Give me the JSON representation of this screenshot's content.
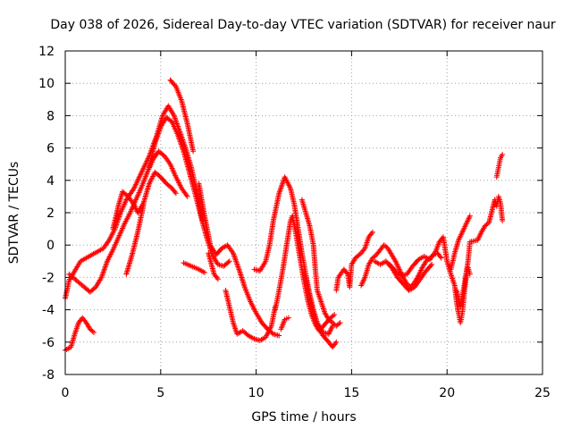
{
  "chart_data": {
    "type": "scatter",
    "title": "Day 038 of 2026, Sidereal Day-to-day VTEC variation (SDTVAR) for receiver naur",
    "xlabel": "GPS time / hours",
    "ylabel": "SDTVAR / TECUs",
    "xlim": [
      0,
      25
    ],
    "ylim": [
      -8,
      12
    ],
    "xticks": [
      0,
      5,
      10,
      15,
      20,
      25
    ],
    "yticks": [
      -8,
      -6,
      -4,
      -2,
      0,
      2,
      4,
      6,
      8,
      10,
      12
    ],
    "grid": true,
    "marker": "+",
    "series": [
      {
        "name": "SDTVAR",
        "color": "#ff0000",
        "points": [
          [
            0,
            -6.5
          ],
          [
            0.3,
            -6.3
          ],
          [
            0.5,
            -5.5
          ],
          [
            0.7,
            -4.8
          ],
          [
            0.9,
            -4.5
          ],
          [
            1.1,
            -4.8
          ],
          [
            1.3,
            -5.2
          ],
          [
            1.5,
            -5.4
          ],
          [
            0.0,
            -3.3
          ],
          [
            0.2,
            -2.2
          ],
          [
            0.5,
            -1.6
          ],
          [
            0.8,
            -1.0
          ],
          [
            1.1,
            -0.8
          ],
          [
            1.4,
            -0.6
          ],
          [
            1.7,
            -0.4
          ],
          [
            2.0,
            -0.2
          ],
          [
            2.3,
            0.3
          ],
          [
            2.6,
            1.0
          ],
          [
            2.9,
            2.0
          ],
          [
            3.2,
            2.8
          ],
          [
            3.6,
            3.5
          ],
          [
            4.0,
            4.5
          ],
          [
            4.4,
            5.5
          ],
          [
            4.8,
            6.8
          ],
          [
            5.1,
            8.0
          ],
          [
            5.4,
            8.6
          ],
          [
            5.7,
            8.0
          ],
          [
            6.0,
            7.0
          ],
          [
            6.3,
            6.0
          ],
          [
            6.6,
            4.8
          ],
          [
            6.9,
            3.2
          ],
          [
            7.2,
            1.5
          ],
          [
            7.5,
            -0.5
          ],
          [
            7.8,
            -1.8
          ],
          [
            8.0,
            -2.1
          ],
          [
            0.2,
            -1.8
          ],
          [
            0.6,
            -2.2
          ],
          [
            1.0,
            -2.6
          ],
          [
            1.3,
            -2.9
          ],
          [
            1.6,
            -2.6
          ],
          [
            1.9,
            -2.0
          ],
          [
            2.2,
            -1.0
          ],
          [
            2.5,
            -0.3
          ],
          [
            2.8,
            0.5
          ],
          [
            3.1,
            1.3
          ],
          [
            3.4,
            2.0
          ],
          [
            3.7,
            2.8
          ],
          [
            4.0,
            3.6
          ],
          [
            4.3,
            4.5
          ],
          [
            4.6,
            5.3
          ],
          [
            4.9,
            5.8
          ],
          [
            5.2,
            5.5
          ],
          [
            5.5,
            5.0
          ],
          [
            5.8,
            4.2
          ],
          [
            6.1,
            3.5
          ],
          [
            6.4,
            3.0
          ],
          [
            2.5,
            1.0
          ],
          [
            2.8,
            2.5
          ],
          [
            3.0,
            3.3
          ],
          [
            3.3,
            3.0
          ],
          [
            3.6,
            2.5
          ],
          [
            3.8,
            2.0
          ],
          [
            4.1,
            2.6
          ],
          [
            4.4,
            3.8
          ],
          [
            4.7,
            4.5
          ],
          [
            5.0,
            4.2
          ],
          [
            5.3,
            3.8
          ],
          [
            5.6,
            3.5
          ],
          [
            5.8,
            3.2
          ],
          [
            3.2,
            -1.8
          ],
          [
            3.5,
            -0.6
          ],
          [
            3.8,
            0.8
          ],
          [
            4.1,
            2.5
          ],
          [
            4.4,
            4.8
          ],
          [
            4.7,
            6.3
          ],
          [
            5.0,
            7.3
          ],
          [
            5.3,
            7.9
          ],
          [
            5.6,
            7.6
          ],
          [
            5.9,
            6.8
          ],
          [
            6.2,
            5.8
          ],
          [
            6.5,
            4.5
          ],
          [
            6.8,
            3.2
          ],
          [
            7.1,
            1.8
          ],
          [
            7.4,
            0.5
          ],
          [
            7.7,
            -0.6
          ],
          [
            8.0,
            -1.2
          ],
          [
            8.3,
            -1.3
          ],
          [
            8.6,
            -1.0
          ],
          [
            5.5,
            10.2
          ],
          [
            5.8,
            9.8
          ],
          [
            6.1,
            8.9
          ],
          [
            6.4,
            7.5
          ],
          [
            6.7,
            5.8
          ],
          [
            7.0,
            3.8
          ],
          [
            7.3,
            1.8
          ],
          [
            7.6,
            0.0
          ],
          [
            7.9,
            -0.6
          ],
          [
            8.2,
            -0.2
          ],
          [
            8.5,
            0.0
          ],
          [
            8.8,
            -0.5
          ],
          [
            9.1,
            -1.5
          ],
          [
            9.4,
            -2.6
          ],
          [
            9.7,
            -3.5
          ],
          [
            10.0,
            -4.2
          ],
          [
            10.3,
            -4.8
          ],
          [
            10.6,
            -5.2
          ],
          [
            10.9,
            -5.5
          ],
          [
            11.2,
            -5.6
          ],
          [
            6.2,
            -1.1
          ],
          [
            6.6,
            -1.3
          ],
          [
            7.0,
            -1.5
          ],
          [
            7.3,
            -1.7
          ],
          [
            8.4,
            -2.8
          ],
          [
            8.6,
            -3.8
          ],
          [
            8.8,
            -4.8
          ],
          [
            9.0,
            -5.5
          ],
          [
            9.3,
            -5.3
          ],
          [
            9.6,
            -5.6
          ],
          [
            9.9,
            -5.8
          ],
          [
            10.2,
            -5.9
          ],
          [
            10.5,
            -5.7
          ],
          [
            10.8,
            -5.0
          ],
          [
            11.0,
            -3.8
          ],
          [
            9.9,
            -1.5
          ],
          [
            10.2,
            -1.6
          ],
          [
            10.5,
            -1.0
          ],
          [
            10.7,
            0.0
          ],
          [
            10.9,
            1.5
          ],
          [
            11.2,
            3.2
          ],
          [
            11.5,
            4.2
          ],
          [
            11.8,
            3.5
          ],
          [
            12.0,
            2.5
          ],
          [
            12.2,
            1.0
          ],
          [
            12.4,
            -0.5
          ],
          [
            12.6,
            -1.8
          ],
          [
            12.8,
            -3.0
          ],
          [
            13.0,
            -4.0
          ],
          [
            13.2,
            -4.8
          ],
          [
            13.5,
            -5.4
          ],
          [
            13.8,
            -5.5
          ],
          [
            14.0,
            -5.0
          ],
          [
            11.0,
            -4.0
          ],
          [
            11.2,
            -2.8
          ],
          [
            11.4,
            -1.5
          ],
          [
            11.6,
            0.0
          ],
          [
            11.8,
            1.5
          ],
          [
            11.9,
            1.8
          ],
          [
            12.1,
            0.6
          ],
          [
            12.3,
            -0.8
          ],
          [
            12.5,
            -2.2
          ],
          [
            12.7,
            -3.4
          ],
          [
            12.9,
            -4.3
          ],
          [
            13.1,
            -4.9
          ],
          [
            13.3,
            -5.3
          ],
          [
            13.6,
            -4.9
          ],
          [
            13.9,
            -4.5
          ],
          [
            14.1,
            -4.3
          ],
          [
            11.3,
            -5.2
          ],
          [
            11.5,
            -4.6
          ],
          [
            11.7,
            -4.5
          ],
          [
            12.4,
            2.8
          ],
          [
            12.6,
            2.0
          ],
          [
            12.8,
            1.2
          ],
          [
            13.0,
            0.0
          ],
          [
            13.1,
            -1.5
          ],
          [
            13.2,
            -2.8
          ],
          [
            13.4,
            -3.5
          ],
          [
            13.6,
            -4.2
          ],
          [
            13.8,
            -4.6
          ],
          [
            14.0,
            -4.8
          ],
          [
            14.2,
            -5.0
          ],
          [
            14.4,
            -4.8
          ],
          [
            12.6,
            -2.0
          ],
          [
            12.8,
            -3.2
          ],
          [
            13.0,
            -4.2
          ],
          [
            13.2,
            -5.0
          ],
          [
            13.5,
            -5.6
          ],
          [
            13.8,
            -6.0
          ],
          [
            14.0,
            -6.3
          ],
          [
            14.2,
            -6.0
          ],
          [
            14.2,
            -2.8
          ],
          [
            14.3,
            -2.0
          ],
          [
            14.6,
            -1.5
          ],
          [
            14.8,
            -1.8
          ],
          [
            14.9,
            -2.6
          ],
          [
            15.0,
            -1.2
          ],
          [
            15.2,
            -0.8
          ],
          [
            15.5,
            -0.5
          ],
          [
            15.7,
            -0.2
          ],
          [
            15.9,
            0.5
          ],
          [
            16.1,
            0.8
          ],
          [
            15.5,
            -2.5
          ],
          [
            15.7,
            -2.0
          ],
          [
            15.9,
            -1.2
          ],
          [
            16.1,
            -0.8
          ],
          [
            16.3,
            -0.6
          ],
          [
            16.5,
            -0.3
          ],
          [
            16.7,
            0.0
          ],
          [
            16.9,
            -0.2
          ],
          [
            17.1,
            -0.6
          ],
          [
            17.3,
            -1.0
          ],
          [
            17.5,
            -1.5
          ],
          [
            17.7,
            -2.0
          ],
          [
            17.9,
            -2.4
          ],
          [
            18.1,
            -2.6
          ],
          [
            18.3,
            -2.3
          ],
          [
            18.5,
            -1.9
          ],
          [
            18.7,
            -1.4
          ],
          [
            18.9,
            -1.0
          ],
          [
            19.1,
            -0.8
          ],
          [
            19.3,
            -0.6
          ],
          [
            19.5,
            -0.5
          ],
          [
            19.7,
            -0.8
          ],
          [
            16.2,
            -1.0
          ],
          [
            16.5,
            -1.2
          ],
          [
            16.8,
            -1.0
          ],
          [
            17.1,
            -1.4
          ],
          [
            17.4,
            -2.0
          ],
          [
            17.7,
            -2.4
          ],
          [
            18.0,
            -2.8
          ],
          [
            18.3,
            -2.6
          ],
          [
            18.6,
            -2.1
          ],
          [
            18.9,
            -1.6
          ],
          [
            19.2,
            -1.2
          ],
          [
            17.0,
            -1.2
          ],
          [
            17.3,
            -1.6
          ],
          [
            17.6,
            -1.9
          ],
          [
            17.9,
            -1.8
          ],
          [
            18.2,
            -1.3
          ],
          [
            18.5,
            -0.9
          ],
          [
            18.8,
            -0.7
          ],
          [
            19.1,
            -0.9
          ],
          [
            19.4,
            -0.4
          ],
          [
            19.6,
            0.2
          ],
          [
            19.8,
            0.5
          ],
          [
            20.0,
            -1.0
          ],
          [
            20.2,
            -1.8
          ],
          [
            20.4,
            -2.5
          ],
          [
            20.5,
            -3.5
          ],
          [
            20.6,
            -4.2
          ],
          [
            20.7,
            -4.8
          ],
          [
            20.8,
            -4.2
          ],
          [
            20.9,
            -3.0
          ],
          [
            21.0,
            -2.0
          ],
          [
            21.1,
            -1.4
          ],
          [
            21.2,
            -1.8
          ],
          [
            20.2,
            -1.5
          ],
          [
            20.4,
            -0.5
          ],
          [
            20.6,
            0.3
          ],
          [
            20.8,
            0.8
          ],
          [
            21.0,
            1.3
          ],
          [
            21.2,
            1.8
          ],
          [
            20.5,
            -2.8
          ],
          [
            20.7,
            -3.8
          ],
          [
            20.9,
            -2.5
          ],
          [
            21.1,
            -1.0
          ],
          [
            21.2,
            0.2
          ],
          [
            21.6,
            0.3
          ],
          [
            21.8,
            0.8
          ],
          [
            22.0,
            1.2
          ],
          [
            22.2,
            1.4
          ],
          [
            22.5,
            2.8
          ],
          [
            22.6,
            2.4
          ],
          [
            22.7,
            3.0
          ],
          [
            22.8,
            2.6
          ],
          [
            22.9,
            1.5
          ],
          [
            22.6,
            4.2
          ],
          [
            22.7,
            4.8
          ],
          [
            22.8,
            5.4
          ],
          [
            22.9,
            5.6
          ]
        ]
      }
    ]
  }
}
